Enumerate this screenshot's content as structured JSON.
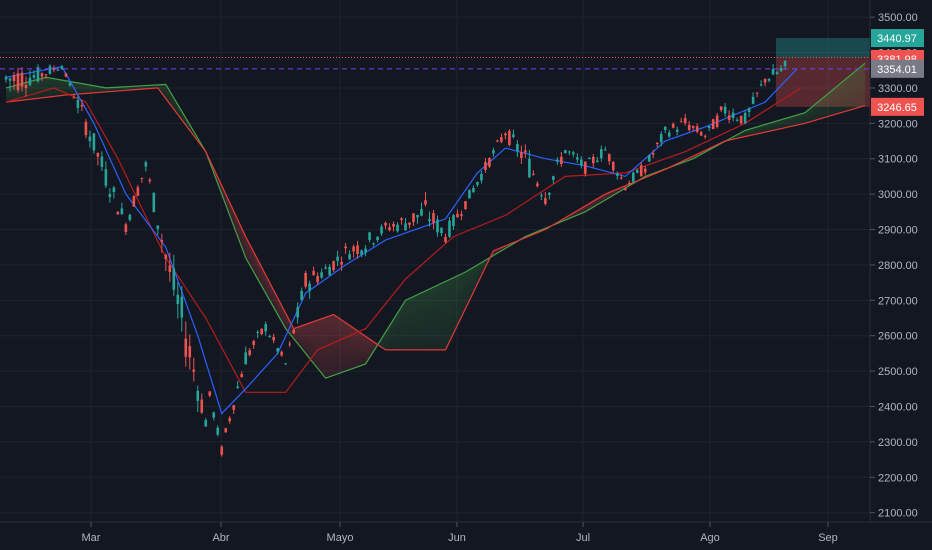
{
  "chart_data": {
    "type": "candlestick",
    "x_ticks": [
      "Mar",
      "Abr",
      "Mayo",
      "Jun",
      "Jul",
      "Ago",
      "Sep"
    ],
    "y_ticks": [
      "3500.00",
      "3400.00",
      "3300.00",
      "3200.00",
      "3100.00",
      "3000.00",
      "2900.00",
      "2800.00",
      "2700.00",
      "2600.00",
      "2500.00",
      "2400.00",
      "2300.00",
      "2200.00",
      "2100.00"
    ],
    "ylim": [
      2085,
      3540
    ],
    "price_tags": [
      {
        "label": "3440.97",
        "value": 3440.97,
        "color": "#26a69a"
      },
      {
        "label": "3381.98",
        "value": 3381.98,
        "color": "#ef5350"
      },
      {
        "label": "3354.01",
        "value": 3354.01,
        "color": "#787b86"
      },
      {
        "label": "3246.65",
        "value": 3246.65,
        "color": "#ef5350"
      }
    ],
    "reference_lines": [
      {
        "value": 3386,
        "color": "#ef5350",
        "style": "dotted"
      },
      {
        "value": 3354,
        "color": "#7b3ff2",
        "style": "dashed"
      }
    ],
    "series": [
      {
        "key": "candles",
        "from": "2020-02-03",
        "to": "2020-08-14",
        "points": [
          [
            0,
            3250,
            3400
          ],
          [
            8,
            3300,
            3370
          ],
          [
            14,
            3350,
            3375
          ],
          [
            15,
            3330,
            3340
          ],
          [
            20,
            3150,
            3250
          ],
          [
            25,
            3000,
            3100
          ],
          [
            30,
            2880,
            2950
          ],
          [
            35,
            3050,
            3110
          ],
          [
            40,
            2750,
            2900
          ],
          [
            45,
            2500,
            2700
          ],
          [
            50,
            2320,
            2400
          ],
          [
            51,
            2410,
            2450
          ],
          [
            54,
            2250,
            2300
          ],
          [
            55,
            2300,
            2350
          ],
          [
            60,
            2500,
            2580
          ],
          [
            65,
            2600,
            2650
          ],
          [
            70,
            2500,
            2540
          ],
          [
            75,
            2700,
            2800
          ],
          [
            80,
            2750,
            2820
          ],
          [
            85,
            2800,
            2870
          ],
          [
            90,
            2820,
            2900
          ],
          [
            95,
            2880,
            2930
          ],
          [
            100,
            2880,
            2960
          ],
          [
            105,
            2900,
            3000
          ],
          [
            110,
            2850,
            2920
          ],
          [
            115,
            2950,
            3000
          ],
          [
            120,
            3050,
            3100
          ],
          [
            125,
            3150,
            3200
          ],
          [
            130,
            3050,
            3150
          ],
          [
            135,
            2950,
            3050
          ],
          [
            140,
            3100,
            3150
          ],
          [
            145,
            3050,
            3100
          ],
          [
            150,
            3100,
            3150
          ],
          [
            155,
            3000,
            3050
          ],
          [
            160,
            3050,
            3100
          ],
          [
            165,
            3150,
            3200
          ],
          [
            170,
            3170,
            3230
          ],
          [
            175,
            3150,
            3180
          ],
          [
            180,
            3200,
            3280
          ],
          [
            185,
            3180,
            3240
          ],
          [
            190,
            3300,
            3350
          ],
          [
            195,
            3320,
            3390
          ]
        ],
        "color_up": "#26a69a",
        "color_down": "#ef5350"
      },
      {
        "key": "tenkan",
        "color": "#2962ff",
        "points": [
          [
            0,
            3330
          ],
          [
            14,
            3360
          ],
          [
            22,
            3200
          ],
          [
            30,
            3000
          ],
          [
            40,
            2850
          ],
          [
            48,
            2600
          ],
          [
            54,
            2380
          ],
          [
            60,
            2450
          ],
          [
            68,
            2550
          ],
          [
            75,
            2720
          ],
          [
            85,
            2800
          ],
          [
            95,
            2870
          ],
          [
            110,
            2930
          ],
          [
            118,
            3060
          ],
          [
            125,
            3130
          ],
          [
            135,
            3100
          ],
          [
            145,
            3080
          ],
          [
            155,
            3050
          ],
          [
            165,
            3150
          ],
          [
            175,
            3190
          ],
          [
            190,
            3260
          ],
          [
            198,
            3354
          ]
        ]
      },
      {
        "key": "kijun",
        "color": "#b71c1c",
        "points": [
          [
            0,
            3260
          ],
          [
            12,
            3300
          ],
          [
            20,
            3260
          ],
          [
            28,
            3100
          ],
          [
            40,
            2820
          ],
          [
            50,
            2650
          ],
          [
            60,
            2440
          ],
          [
            70,
            2440
          ],
          [
            78,
            2560
          ],
          [
            90,
            2620
          ],
          [
            100,
            2760
          ],
          [
            112,
            2880
          ],
          [
            125,
            2940
          ],
          [
            140,
            3050
          ],
          [
            155,
            3060
          ],
          [
            170,
            3120
          ],
          [
            185,
            3200
          ],
          [
            199,
            3300
          ]
        ]
      },
      {
        "key": "senkou_a",
        "color": "#43a047",
        "points": [
          [
            0,
            3300
          ],
          [
            10,
            3330
          ],
          [
            25,
            3300
          ],
          [
            40,
            3310
          ],
          [
            50,
            3120
          ],
          [
            60,
            2820
          ],
          [
            70,
            2620
          ],
          [
            80,
            2480
          ],
          [
            90,
            2520
          ],
          [
            100,
            2700
          ],
          [
            115,
            2780
          ],
          [
            130,
            2880
          ],
          [
            145,
            2950
          ],
          [
            160,
            3050
          ],
          [
            172,
            3100
          ],
          [
            185,
            3180
          ],
          [
            200,
            3230
          ],
          [
            215,
            3370
          ]
        ]
      },
      {
        "key": "senkou_b",
        "color": "#e53935",
        "points": [
          [
            0,
            3260
          ],
          [
            15,
            3280
          ],
          [
            38,
            3300
          ],
          [
            50,
            3120
          ],
          [
            60,
            2880
          ],
          [
            72,
            2620
          ],
          [
            82,
            2660
          ],
          [
            95,
            2560
          ],
          [
            110,
            2560
          ],
          [
            122,
            2840
          ],
          [
            135,
            2900
          ],
          [
            150,
            3000
          ],
          [
            165,
            3070
          ],
          [
            180,
            3150
          ],
          [
            200,
            3200
          ],
          [
            215,
            3250
          ]
        ]
      }
    ]
  }
}
